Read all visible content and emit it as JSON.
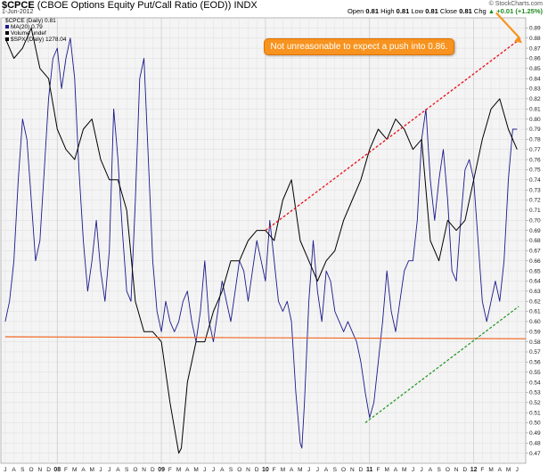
{
  "header": {
    "symbol": "$CPCE",
    "description": "(CBOE Options Equity Put/Call Ratio (EOD))",
    "exchange": "INDX",
    "date": "1-Jun-2012",
    "open_label": "Open",
    "open": "0.81",
    "high_label": "High",
    "high": "0.81",
    "low_label": "Low",
    "low": "0.81",
    "close_label": "Close",
    "close": "0.81",
    "chg_label": "Chg",
    "chg": "+0.01 (+1.25%)",
    "chg_arrow": "▲",
    "brand": "© StockCharts.com"
  },
  "legend": {
    "cpce": "$CPCE (Daily) 0.81",
    "ma": "MA(20) 0.79",
    "volume": "Volume undef",
    "spx": "$SPX (Daily) 1278.04",
    "colors": {
      "ma": "#1a1a8c",
      "spx": "#000000",
      "volume": "#000000"
    }
  },
  "annotation": {
    "text": "Not unreasonable to expect a push into 0.86.",
    "color": "#f7931e"
  },
  "chart_data": {
    "type": "line",
    "y_axis": {
      "position": "right",
      "ylim": [
        0.46,
        0.9
      ],
      "ticks": [
        "0.89",
        "0.88",
        "0.87",
        "0.86",
        "0.85",
        "0.84",
        "0.83",
        "0.82",
        "0.81",
        "0.80",
        "0.79",
        "0.78",
        "0.77",
        "0.76",
        "0.75",
        "0.74",
        "0.73",
        "0.72",
        "0.71",
        "0.70",
        "0.69",
        "0.68",
        "0.67",
        "0.66",
        "0.65",
        "0.64",
        "0.63",
        "0.62",
        "0.61",
        "0.60",
        "0.59",
        "0.58",
        "0.57",
        "0.56",
        "0.55",
        "0.54",
        "0.53",
        "0.52",
        "0.51",
        "0.50",
        "0.49",
        "0.48",
        "0.47"
      ]
    },
    "x_axis": {
      "xlim": [
        "2007-06",
        "2012-06"
      ],
      "labels": [
        {
          "t": 0,
          "l": "J"
        },
        {
          "t": 1,
          "l": "A"
        },
        {
          "t": 2,
          "l": "S"
        },
        {
          "t": 3,
          "l": "O"
        },
        {
          "t": 4,
          "l": "N"
        },
        {
          "t": 5,
          "l": "D"
        },
        {
          "t": 6,
          "l": "08",
          "year": true
        },
        {
          "t": 7,
          "l": "F"
        },
        {
          "t": 8,
          "l": "M"
        },
        {
          "t": 9,
          "l": "A"
        },
        {
          "t": 10,
          "l": "M"
        },
        {
          "t": 11,
          "l": "J"
        },
        {
          "t": 12,
          "l": "J"
        },
        {
          "t": 13,
          "l": "A"
        },
        {
          "t": 14,
          "l": "S"
        },
        {
          "t": 15,
          "l": "O"
        },
        {
          "t": 16,
          "l": "N"
        },
        {
          "t": 17,
          "l": "D"
        },
        {
          "t": 18,
          "l": "09",
          "year": true
        },
        {
          "t": 19,
          "l": "F"
        },
        {
          "t": 20,
          "l": "M"
        },
        {
          "t": 21,
          "l": "A"
        },
        {
          "t": 22,
          "l": "M"
        },
        {
          "t": 23,
          "l": "J"
        },
        {
          "t": 24,
          "l": "J"
        },
        {
          "t": 25,
          "l": "A"
        },
        {
          "t": 26,
          "l": "S"
        },
        {
          "t": 27,
          "l": "O"
        },
        {
          "t": 28,
          "l": "N"
        },
        {
          "t": 29,
          "l": "D"
        },
        {
          "t": 30,
          "l": "10",
          "year": true
        },
        {
          "t": 31,
          "l": "F"
        },
        {
          "t": 32,
          "l": "M"
        },
        {
          "t": 33,
          "l": "A"
        },
        {
          "t": 34,
          "l": "M"
        },
        {
          "t": 35,
          "l": "J"
        },
        {
          "t": 36,
          "l": "J"
        },
        {
          "t": 37,
          "l": "A"
        },
        {
          "t": 38,
          "l": "S"
        },
        {
          "t": 39,
          "l": "O"
        },
        {
          "t": 40,
          "l": "N"
        },
        {
          "t": 41,
          "l": "D"
        },
        {
          "t": 42,
          "l": "11",
          "year": true
        },
        {
          "t": 43,
          "l": "F"
        },
        {
          "t": 44,
          "l": "M"
        },
        {
          "t": 45,
          "l": "A"
        },
        {
          "t": 46,
          "l": "M"
        },
        {
          "t": 47,
          "l": "J"
        },
        {
          "t": 48,
          "l": "J"
        },
        {
          "t": 49,
          "l": "A"
        },
        {
          "t": 50,
          "l": "S"
        },
        {
          "t": 51,
          "l": "O"
        },
        {
          "t": 52,
          "l": "N"
        },
        {
          "t": 53,
          "l": "D"
        },
        {
          "t": 54,
          "l": "12",
          "year": true
        },
        {
          "t": 55,
          "l": "F"
        },
        {
          "t": 56,
          "l": "M"
        },
        {
          "t": 57,
          "l": "A"
        },
        {
          "t": 58,
          "l": "M"
        },
        {
          "t": 59,
          "l": "J"
        }
      ]
    },
    "grid": true,
    "series": [
      {
        "name": "MA(20)",
        "color": "#1a1a8c",
        "points": [
          [
            0,
            0.6
          ],
          [
            0.5,
            0.62
          ],
          [
            1,
            0.66
          ],
          [
            1.5,
            0.74
          ],
          [
            2,
            0.8
          ],
          [
            2.5,
            0.78
          ],
          [
            3,
            0.72
          ],
          [
            3.5,
            0.66
          ],
          [
            4,
            0.68
          ],
          [
            4.5,
            0.75
          ],
          [
            5,
            0.82
          ],
          [
            5.5,
            0.86
          ],
          [
            6,
            0.87
          ],
          [
            6.5,
            0.83
          ],
          [
            7,
            0.86
          ],
          [
            7.5,
            0.88
          ],
          [
            8,
            0.84
          ],
          [
            8.5,
            0.75
          ],
          [
            9,
            0.68
          ],
          [
            9.5,
            0.63
          ],
          [
            10,
            0.66
          ],
          [
            10.5,
            0.7
          ],
          [
            11,
            0.65
          ],
          [
            11.5,
            0.62
          ],
          [
            12,
            0.67
          ],
          [
            12.5,
            0.81
          ],
          [
            13,
            0.76
          ],
          [
            13.5,
            0.69
          ],
          [
            14,
            0.63
          ],
          [
            14.5,
            0.62
          ],
          [
            15,
            0.72
          ],
          [
            15.5,
            0.84
          ],
          [
            16,
            0.86
          ],
          [
            16.5,
            0.76
          ],
          [
            17,
            0.66
          ],
          [
            17.5,
            0.61
          ],
          [
            18,
            0.59
          ],
          [
            18.5,
            0.62
          ],
          [
            19,
            0.6
          ],
          [
            19.5,
            0.59
          ],
          [
            20,
            0.6
          ],
          [
            20.5,
            0.62
          ],
          [
            21,
            0.63
          ],
          [
            21.5,
            0.6
          ],
          [
            22,
            0.58
          ],
          [
            22.5,
            0.61
          ],
          [
            23,
            0.66
          ],
          [
            23.5,
            0.6
          ],
          [
            24,
            0.58
          ],
          [
            24.5,
            0.61
          ],
          [
            25,
            0.64
          ],
          [
            25.5,
            0.62
          ],
          [
            26,
            0.6
          ],
          [
            26.5,
            0.63
          ],
          [
            27,
            0.66
          ],
          [
            27.5,
            0.65
          ],
          [
            28,
            0.62
          ],
          [
            28.5,
            0.65
          ],
          [
            29,
            0.68
          ],
          [
            29.5,
            0.66
          ],
          [
            30,
            0.64
          ],
          [
            30.5,
            0.7
          ],
          [
            31,
            0.66
          ],
          [
            31.5,
            0.62
          ],
          [
            32,
            0.61
          ],
          [
            32.5,
            0.62
          ],
          [
            33,
            0.6
          ],
          [
            33.5,
            0.53
          ],
          [
            34,
            0.48
          ],
          [
            34.2,
            0.475
          ],
          [
            34.5,
            0.52
          ],
          [
            35,
            0.62
          ],
          [
            35.5,
            0.68
          ],
          [
            36,
            0.63
          ],
          [
            36.5,
            0.6
          ],
          [
            37,
            0.65
          ],
          [
            37.5,
            0.64
          ],
          [
            38,
            0.61
          ],
          [
            38.5,
            0.6
          ],
          [
            39,
            0.59
          ],
          [
            39.5,
            0.6
          ],
          [
            40,
            0.59
          ],
          [
            40.5,
            0.58
          ],
          [
            41,
            0.56
          ],
          [
            41.5,
            0.53
          ],
          [
            42,
            0.505
          ],
          [
            42.5,
            0.52
          ],
          [
            43,
            0.56
          ],
          [
            43.5,
            0.6
          ],
          [
            44,
            0.65
          ],
          [
            44.5,
            0.61
          ],
          [
            45,
            0.59
          ],
          [
            45.5,
            0.62
          ],
          [
            46,
            0.65
          ],
          [
            46.5,
            0.66
          ],
          [
            47,
            0.66
          ],
          [
            47.5,
            0.7
          ],
          [
            48,
            0.78
          ],
          [
            48.5,
            0.81
          ],
          [
            49,
            0.74
          ],
          [
            49.5,
            0.7
          ],
          [
            50,
            0.74
          ],
          [
            50.5,
            0.77
          ],
          [
            51,
            0.72
          ],
          [
            51.5,
            0.65
          ],
          [
            52,
            0.64
          ],
          [
            52.5,
            0.7
          ],
          [
            53,
            0.75
          ],
          [
            53.5,
            0.76
          ],
          [
            54,
            0.74
          ],
          [
            54.5,
            0.68
          ],
          [
            55,
            0.62
          ],
          [
            55.5,
            0.6
          ],
          [
            56,
            0.62
          ],
          [
            56.5,
            0.64
          ],
          [
            57,
            0.62
          ],
          [
            57.5,
            0.66
          ],
          [
            58,
            0.74
          ],
          [
            58.5,
            0.79
          ],
          [
            59,
            0.79
          ]
        ]
      },
      {
        "name": "$SPX (Daily)",
        "color": "#000000",
        "points": [
          [
            0,
            0.88
          ],
          [
            1,
            0.86
          ],
          [
            2,
            0.87
          ],
          [
            3,
            0.89
          ],
          [
            4,
            0.85
          ],
          [
            5,
            0.84
          ],
          [
            6,
            0.79
          ],
          [
            7,
            0.77
          ],
          [
            8,
            0.76
          ],
          [
            9,
            0.79
          ],
          [
            10,
            0.8
          ],
          [
            11,
            0.76
          ],
          [
            12,
            0.74
          ],
          [
            13,
            0.74
          ],
          [
            14,
            0.71
          ],
          [
            15,
            0.62
          ],
          [
            16,
            0.59
          ],
          [
            17,
            0.59
          ],
          [
            18,
            0.58
          ],
          [
            19,
            0.52
          ],
          [
            20,
            0.47
          ],
          [
            20.3,
            0.475
          ],
          [
            21,
            0.54
          ],
          [
            22,
            0.58
          ],
          [
            23,
            0.58
          ],
          [
            24,
            0.61
          ],
          [
            25,
            0.63
          ],
          [
            26,
            0.66
          ],
          [
            27,
            0.66
          ],
          [
            28,
            0.68
          ],
          [
            29,
            0.69
          ],
          [
            30,
            0.69
          ],
          [
            31,
            0.68
          ],
          [
            32,
            0.72
          ],
          [
            33,
            0.74
          ],
          [
            34,
            0.68
          ],
          [
            35,
            0.66
          ],
          [
            36,
            0.64
          ],
          [
            37,
            0.66
          ],
          [
            38,
            0.67
          ],
          [
            39,
            0.7
          ],
          [
            40,
            0.72
          ],
          [
            41,
            0.74
          ],
          [
            42,
            0.77
          ],
          [
            43,
            0.79
          ],
          [
            44,
            0.78
          ],
          [
            45,
            0.8
          ],
          [
            46,
            0.79
          ],
          [
            47,
            0.77
          ],
          [
            48,
            0.78
          ],
          [
            49,
            0.68
          ],
          [
            50,
            0.66
          ],
          [
            51,
            0.7
          ],
          [
            52,
            0.69
          ],
          [
            53,
            0.7
          ],
          [
            54,
            0.74
          ],
          [
            55,
            0.78
          ],
          [
            56,
            0.81
          ],
          [
            57,
            0.82
          ],
          [
            58,
            0.79
          ],
          [
            59,
            0.77
          ]
        ]
      },
      {
        "name": "Horizontal support",
        "color": "#f26522",
        "points": [
          [
            0,
            0.585
          ],
          [
            60,
            0.583
          ]
        ]
      },
      {
        "name": "Upper trend",
        "color": "#e8101a",
        "points": [
          [
            30,
            0.69
          ],
          [
            59.5,
            0.88
          ]
        ]
      },
      {
        "name": "Lower trend",
        "color": "#2a9a2a",
        "points": [
          [
            41.5,
            0.5
          ],
          [
            59.2,
            0.615
          ]
        ]
      }
    ]
  }
}
